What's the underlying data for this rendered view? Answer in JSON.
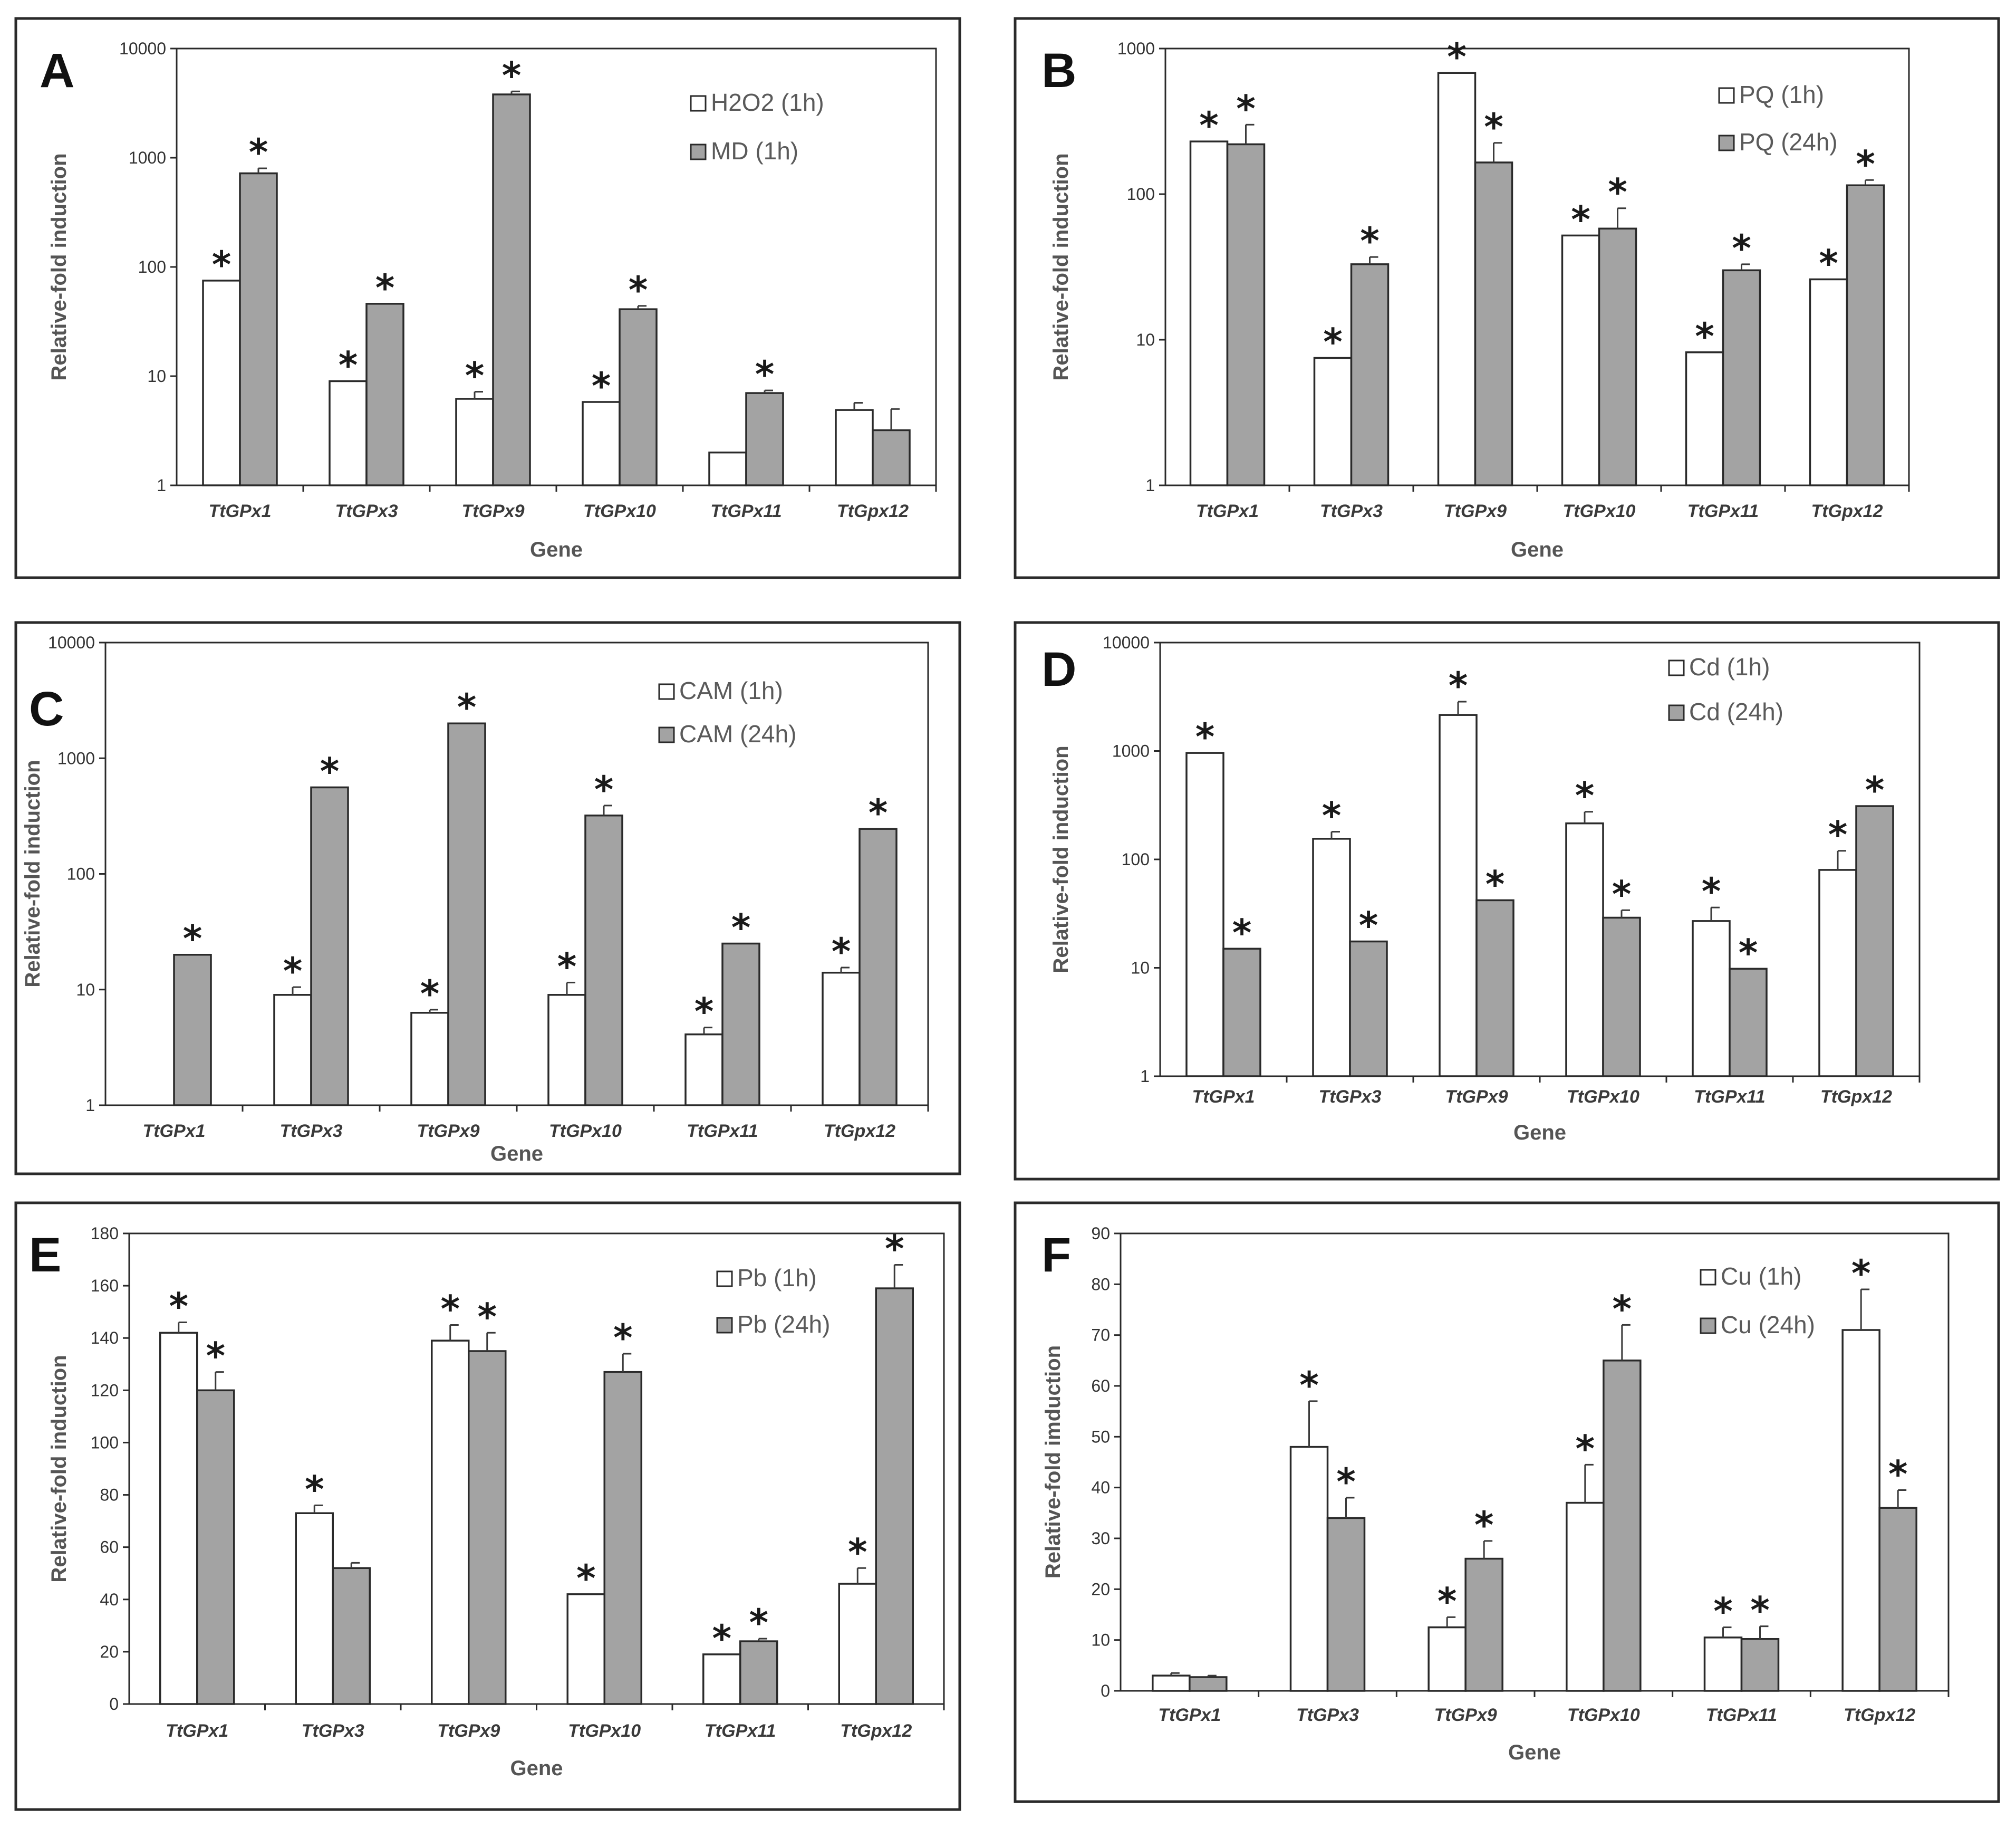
{
  "colors": {
    "series1": "#ffffff",
    "series2": "#a3a3a3",
    "stroke": "#2a2a2a"
  },
  "chart_data": [
    {
      "type": "bar",
      "panel": "A",
      "scale": "log",
      "ylim": [
        1,
        10000
      ],
      "yticks": [
        "1",
        "10",
        "100",
        "1000",
        "10000"
      ],
      "ytick_values": [
        1,
        10,
        100,
        1000,
        10000
      ],
      "ylabel": "Relative-fold induction",
      "xlabel": "Gene",
      "categories": [
        "TtGPx1",
        "TtGPx3",
        "TtGPx9",
        "TtGPx10",
        "TtGPx11",
        "TtGpx12"
      ],
      "series": [
        {
          "name": "H2O2 (1h)",
          "values": [
            75,
            9,
            6.2,
            5.8,
            2,
            4.9
          ],
          "errors": [
            0,
            0,
            1,
            0,
            0,
            0.8
          ],
          "significant": [
            true,
            true,
            true,
            true,
            false,
            false
          ]
        },
        {
          "name": "MD (1h)",
          "values": [
            720,
            46,
            3800,
            41,
            7,
            3.2
          ],
          "errors": [
            80,
            0,
            250,
            3,
            0.4,
            1.8
          ],
          "significant": [
            true,
            true,
            true,
            true,
            true,
            false
          ]
        }
      ]
    },
    {
      "type": "bar",
      "panel": "B",
      "scale": "log",
      "ylim": [
        1,
        1000
      ],
      "yticks": [
        "1",
        "10",
        "100",
        "1000"
      ],
      "ytick_values": [
        1,
        10,
        100,
        1000
      ],
      "ylabel": "Relative-fold induction",
      "xlabel": "Gene",
      "categories": [
        "TtGPx1",
        "TtGPx3",
        "TtGPx9",
        "TtGPx10",
        "TtGPx11",
        "TtGpx12"
      ],
      "series": [
        {
          "name": "PQ (1h)",
          "values": [
            230,
            7.5,
            680,
            52,
            8.2,
            26
          ],
          "errors": [
            0,
            0,
            0,
            0,
            0,
            0
          ],
          "significant": [
            true,
            true,
            true,
            true,
            true,
            true
          ]
        },
        {
          "name": "PQ (24h)",
          "values": [
            220,
            33,
            165,
            58,
            30,
            115
          ],
          "errors": [
            80,
            4,
            60,
            22,
            3,
            10
          ],
          "significant": [
            true,
            true,
            true,
            true,
            true,
            true
          ]
        }
      ]
    },
    {
      "type": "bar",
      "panel": "C",
      "scale": "log",
      "ylim": [
        1,
        10000
      ],
      "yticks": [
        "1",
        "10",
        "100",
        "1000",
        "10000"
      ],
      "ytick_values": [
        1,
        10,
        100,
        1000,
        10000
      ],
      "ylabel": "Relative-fold induction",
      "xlabel": "Gene",
      "categories": [
        "TtGPx1",
        "TtGPx3",
        "TtGPx9",
        "TtGPx10",
        "TtGPx11",
        "TtGpx12"
      ],
      "series": [
        {
          "name": "CAM (1h)",
          "values": [
            null,
            9,
            6.3,
            9,
            4.1,
            14
          ],
          "errors": [
            0,
            1.5,
            0.4,
            2.5,
            0.6,
            1.5
          ],
          "significant": [
            false,
            true,
            true,
            true,
            true,
            true
          ]
        },
        {
          "name": "CAM (24h)",
          "values": [
            20,
            560,
            2000,
            320,
            25,
            245
          ],
          "errors": [
            0,
            0,
            0,
            70,
            0,
            0
          ],
          "significant": [
            true,
            true,
            true,
            true,
            true,
            true
          ]
        }
      ]
    },
    {
      "type": "bar",
      "panel": "D",
      "scale": "log",
      "ylim": [
        1,
        10000
      ],
      "yticks": [
        "1",
        "10",
        "100",
        "1000",
        "10000"
      ],
      "ytick_values": [
        1,
        10,
        100,
        1000,
        10000
      ],
      "ylabel": "Relative-fold induction",
      "xlabel": "Gene",
      "categories": [
        "TtGPx1",
        "TtGPx3",
        "TtGPx9",
        "TtGPx10",
        "TtGPx11",
        "TtGpx12"
      ],
      "series": [
        {
          "name": "Cd (1h)",
          "values": [
            960,
            155,
            2150,
            215,
            27,
            80
          ],
          "errors": [
            0,
            25,
            700,
            60,
            9,
            40
          ],
          "significant": [
            true,
            true,
            true,
            true,
            true,
            true
          ]
        },
        {
          "name": "Cd (24h)",
          "values": [
            15,
            17.5,
            42,
            29,
            9.8,
            310
          ],
          "errors": [
            0,
            0,
            0,
            5,
            0,
            0
          ],
          "significant": [
            true,
            true,
            true,
            true,
            true,
            true
          ]
        }
      ]
    },
    {
      "type": "bar",
      "panel": "E",
      "scale": "linear",
      "ylim": [
        0,
        180
      ],
      "yticks": [
        "0",
        "20",
        "40",
        "60",
        "80",
        "100",
        "120",
        "140",
        "160",
        "180"
      ],
      "ytick_values": [
        0,
        20,
        40,
        60,
        80,
        100,
        120,
        140,
        160,
        180
      ],
      "ylabel": "Relative-fold induction",
      "xlabel": "Gene",
      "categories": [
        "TtGPx1",
        "TtGPx3",
        "TtGPx9",
        "TtGPx10",
        "TtGPx11",
        "TtGpx12"
      ],
      "series": [
        {
          "name": "Pb (1h)",
          "values": [
            142,
            73,
            139,
            42,
            19,
            46
          ],
          "errors": [
            4,
            3,
            6,
            0,
            0,
            6
          ],
          "significant": [
            true,
            true,
            true,
            true,
            true,
            true
          ]
        },
        {
          "name": "Pb (24h)",
          "values": [
            120,
            52,
            135,
            127,
            24,
            159
          ],
          "errors": [
            7,
            2,
            7,
            7,
            1,
            9
          ],
          "significant": [
            true,
            false,
            true,
            true,
            true,
            true
          ]
        }
      ]
    },
    {
      "type": "bar",
      "panel": "F",
      "scale": "linear",
      "ylim": [
        0,
        90
      ],
      "yticks": [
        "0",
        "10",
        "20",
        "30",
        "40",
        "50",
        "60",
        "70",
        "80",
        "90"
      ],
      "ytick_values": [
        0,
        10,
        20,
        30,
        40,
        50,
        60,
        70,
        80,
        90
      ],
      "ylabel": "Relative-fold imduction",
      "xlabel": "Gene",
      "categories": [
        "TtGPx1",
        "TtGPx3",
        "TtGPx9",
        "TtGPx10",
        "TtGPx11",
        "TtGpx12"
      ],
      "series": [
        {
          "name": "Cu (1h)",
          "values": [
            3,
            48,
            12.5,
            37,
            10.5,
            71
          ],
          "errors": [
            0.5,
            9,
            2,
            7.5,
            2,
            8
          ],
          "significant": [
            false,
            true,
            true,
            true,
            true,
            true
          ]
        },
        {
          "name": "Cu (24h)",
          "values": [
            2.7,
            34,
            26,
            65,
            10.2,
            36
          ],
          "errors": [
            0.3,
            4,
            3.5,
            7,
            2.5,
            3.5
          ],
          "significant": [
            false,
            true,
            true,
            true,
            true,
            true
          ]
        }
      ]
    }
  ]
}
